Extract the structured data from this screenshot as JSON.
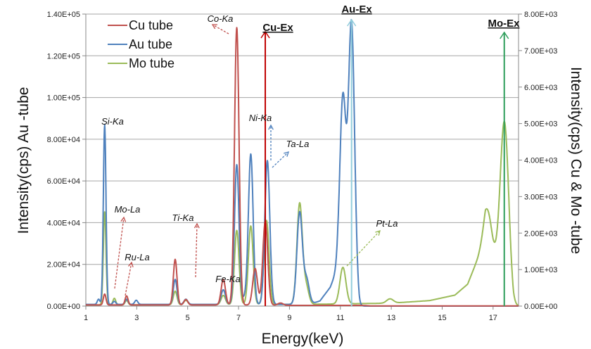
{
  "chart_data": {
    "type": "line",
    "xlabel": "Energy(keV)",
    "ylabel_left": "Intensity(cps) Au -tube",
    "ylabel_right": "Intensity(cps) Cu & Mo -tube",
    "xlim": [
      1,
      18
    ],
    "x_ticks": [
      "1",
      "3",
      "5",
      "7",
      "9",
      "11",
      "13",
      "15",
      "17"
    ],
    "ylim_left": [
      0,
      140000
    ],
    "y_ticks_left": [
      "0.00E+00",
      "2.00E+04",
      "4.00E+04",
      "6.00E+04",
      "8.00E+04",
      "1.00E+05",
      "1.20E+05",
      "1.40E+05"
    ],
    "ylim_right": [
      0,
      8000
    ],
    "y_ticks_right": [
      "0.00E+00",
      "1.00E+03",
      "2.00E+03",
      "3.00E+03",
      "4.00E+03",
      "5.00E+03",
      "6.00E+03",
      "7.00E+03",
      "8.00E+03"
    ],
    "grid": "horizontal",
    "legend_position": "top-left",
    "series": [
      {
        "name": "Cu tube",
        "color": "#c0504d",
        "axis": "right",
        "peaks": [
          [
            1.74,
            300
          ],
          [
            2.6,
            250
          ],
          [
            4.51,
            1250
          ],
          [
            4.93,
            150
          ],
          [
            6.4,
            700
          ],
          [
            6.93,
            7600
          ],
          [
            7.65,
            1000
          ],
          [
            8.05,
            2300
          ],
          [
            8.65,
            60
          ]
        ],
        "background": [
          [
            1,
            30
          ],
          [
            8,
            30
          ],
          [
            9,
            20
          ],
          [
            11.8,
            20
          ],
          [
            12.2,
            5
          ],
          [
            18,
            5
          ]
        ]
      },
      {
        "name": "Au tube",
        "color": "#4f81bd",
        "axis": "left",
        "peaks": [
          [
            1.5,
            2500
          ],
          [
            1.74,
            86000
          ],
          [
            2.12,
            1500
          ],
          [
            2.6,
            2500
          ],
          [
            2.98,
            2000
          ],
          [
            4.51,
            12000
          ],
          [
            4.93,
            2500
          ],
          [
            6.4,
            7000
          ],
          [
            6.93,
            67000
          ],
          [
            7.25,
            3000
          ],
          [
            7.48,
            72000
          ],
          [
            8.13,
            69000
          ],
          [
            9.4,
            44000
          ],
          [
            9.67,
            12000
          ],
          [
            11.1,
            84000
          ],
          [
            11.44,
            126000
          ]
        ],
        "background": [
          [
            1,
            800
          ],
          [
            9.8,
            800
          ],
          [
            10.2,
            2500
          ],
          [
            10.6,
            9000
          ],
          [
            10.9,
            18000
          ],
          [
            11.3,
            14000
          ],
          [
            11.6,
            5000
          ],
          [
            11.75,
            0
          ],
          [
            18,
            0
          ]
        ]
      },
      {
        "name": "Mo tube",
        "color": "#9bbb59",
        "axis": "right",
        "peaks": [
          [
            1.74,
            2550
          ],
          [
            2.12,
            180
          ],
          [
            2.6,
            120
          ],
          [
            4.51,
            370
          ],
          [
            4.93,
            120
          ],
          [
            6.4,
            250
          ],
          [
            6.93,
            2030
          ],
          [
            7.48,
            2150
          ],
          [
            8.1,
            2300
          ],
          [
            9.4,
            2750
          ],
          [
            9.65,
            500
          ],
          [
            11.1,
            1000
          ],
          [
            12.95,
            120
          ],
          [
            16.8,
            900
          ],
          [
            17.45,
            4300
          ]
        ],
        "background": [
          [
            1,
            30
          ],
          [
            10,
            50
          ],
          [
            13,
            80
          ],
          [
            14.5,
            150
          ],
          [
            15.5,
            300
          ],
          [
            16,
            600
          ],
          [
            16.4,
            1300
          ],
          [
            16.7,
            1900
          ],
          [
            17.0,
            1350
          ],
          [
            17.3,
            1000
          ],
          [
            17.6,
            500
          ],
          [
            17.8,
            0
          ],
          [
            18,
            0
          ]
        ]
      }
    ],
    "peak_labels": [
      "Co-Ka",
      "Si-Ka",
      "Ni-Ka",
      "Ta-La",
      "Mo-La",
      "Ru-La",
      "Ti-Ka",
      "Fe-Ka",
      "Pt-La"
    ],
    "excitation_lines": [
      {
        "label": "Cu-Ex",
        "energy": 8.05,
        "color": "#c00000"
      },
      {
        "label": "Au-Ex",
        "energy": 11.44,
        "color": "#92cddc"
      },
      {
        "label": "Mo-Ex",
        "energy": 17.44,
        "color": "#2e9e5b"
      }
    ]
  }
}
